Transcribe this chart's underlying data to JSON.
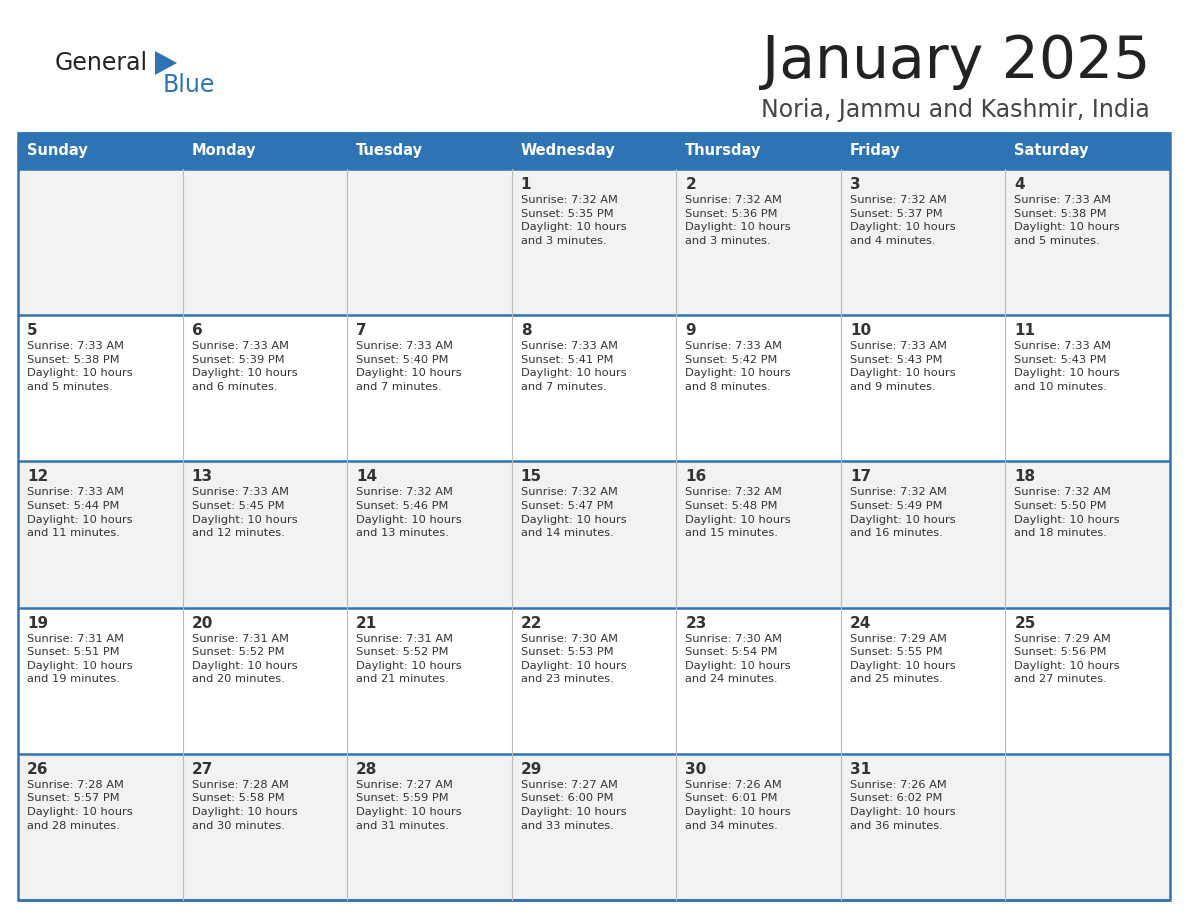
{
  "title": "January 2025",
  "subtitle": "Noria, Jammu and Kashmir, India",
  "days_of_week": [
    "Sunday",
    "Monday",
    "Tuesday",
    "Wednesday",
    "Thursday",
    "Friday",
    "Saturday"
  ],
  "header_bg": "#2E74B5",
  "header_text": "#FFFFFF",
  "row_bg_odd": "#F2F2F2",
  "row_bg_even": "#FFFFFF",
  "cell_text": "#333333",
  "border_color": "#2E74B5",
  "title_color": "#222222",
  "subtitle_color": "#444444",
  "logo_general_color": "#222222",
  "logo_blue_color": "#2E74B5",
  "logo_triangle_color": "#2E74B5",
  "calendar_data": [
    [
      {
        "day": "",
        "info": ""
      },
      {
        "day": "",
        "info": ""
      },
      {
        "day": "",
        "info": ""
      },
      {
        "day": "1",
        "info": "Sunrise: 7:32 AM\nSunset: 5:35 PM\nDaylight: 10 hours\nand 3 minutes."
      },
      {
        "day": "2",
        "info": "Sunrise: 7:32 AM\nSunset: 5:36 PM\nDaylight: 10 hours\nand 3 minutes."
      },
      {
        "day": "3",
        "info": "Sunrise: 7:32 AM\nSunset: 5:37 PM\nDaylight: 10 hours\nand 4 minutes."
      },
      {
        "day": "4",
        "info": "Sunrise: 7:33 AM\nSunset: 5:38 PM\nDaylight: 10 hours\nand 5 minutes."
      }
    ],
    [
      {
        "day": "5",
        "info": "Sunrise: 7:33 AM\nSunset: 5:38 PM\nDaylight: 10 hours\nand 5 minutes."
      },
      {
        "day": "6",
        "info": "Sunrise: 7:33 AM\nSunset: 5:39 PM\nDaylight: 10 hours\nand 6 minutes."
      },
      {
        "day": "7",
        "info": "Sunrise: 7:33 AM\nSunset: 5:40 PM\nDaylight: 10 hours\nand 7 minutes."
      },
      {
        "day": "8",
        "info": "Sunrise: 7:33 AM\nSunset: 5:41 PM\nDaylight: 10 hours\nand 7 minutes."
      },
      {
        "day": "9",
        "info": "Sunrise: 7:33 AM\nSunset: 5:42 PM\nDaylight: 10 hours\nand 8 minutes."
      },
      {
        "day": "10",
        "info": "Sunrise: 7:33 AM\nSunset: 5:43 PM\nDaylight: 10 hours\nand 9 minutes."
      },
      {
        "day": "11",
        "info": "Sunrise: 7:33 AM\nSunset: 5:43 PM\nDaylight: 10 hours\nand 10 minutes."
      }
    ],
    [
      {
        "day": "12",
        "info": "Sunrise: 7:33 AM\nSunset: 5:44 PM\nDaylight: 10 hours\nand 11 minutes."
      },
      {
        "day": "13",
        "info": "Sunrise: 7:33 AM\nSunset: 5:45 PM\nDaylight: 10 hours\nand 12 minutes."
      },
      {
        "day": "14",
        "info": "Sunrise: 7:32 AM\nSunset: 5:46 PM\nDaylight: 10 hours\nand 13 minutes."
      },
      {
        "day": "15",
        "info": "Sunrise: 7:32 AM\nSunset: 5:47 PM\nDaylight: 10 hours\nand 14 minutes."
      },
      {
        "day": "16",
        "info": "Sunrise: 7:32 AM\nSunset: 5:48 PM\nDaylight: 10 hours\nand 15 minutes."
      },
      {
        "day": "17",
        "info": "Sunrise: 7:32 AM\nSunset: 5:49 PM\nDaylight: 10 hours\nand 16 minutes."
      },
      {
        "day": "18",
        "info": "Sunrise: 7:32 AM\nSunset: 5:50 PM\nDaylight: 10 hours\nand 18 minutes."
      }
    ],
    [
      {
        "day": "19",
        "info": "Sunrise: 7:31 AM\nSunset: 5:51 PM\nDaylight: 10 hours\nand 19 minutes."
      },
      {
        "day": "20",
        "info": "Sunrise: 7:31 AM\nSunset: 5:52 PM\nDaylight: 10 hours\nand 20 minutes."
      },
      {
        "day": "21",
        "info": "Sunrise: 7:31 AM\nSunset: 5:52 PM\nDaylight: 10 hours\nand 21 minutes."
      },
      {
        "day": "22",
        "info": "Sunrise: 7:30 AM\nSunset: 5:53 PM\nDaylight: 10 hours\nand 23 minutes."
      },
      {
        "day": "23",
        "info": "Sunrise: 7:30 AM\nSunset: 5:54 PM\nDaylight: 10 hours\nand 24 minutes."
      },
      {
        "day": "24",
        "info": "Sunrise: 7:29 AM\nSunset: 5:55 PM\nDaylight: 10 hours\nand 25 minutes."
      },
      {
        "day": "25",
        "info": "Sunrise: 7:29 AM\nSunset: 5:56 PM\nDaylight: 10 hours\nand 27 minutes."
      }
    ],
    [
      {
        "day": "26",
        "info": "Sunrise: 7:28 AM\nSunset: 5:57 PM\nDaylight: 10 hours\nand 28 minutes."
      },
      {
        "day": "27",
        "info": "Sunrise: 7:28 AM\nSunset: 5:58 PM\nDaylight: 10 hours\nand 30 minutes."
      },
      {
        "day": "28",
        "info": "Sunrise: 7:27 AM\nSunset: 5:59 PM\nDaylight: 10 hours\nand 31 minutes."
      },
      {
        "day": "29",
        "info": "Sunrise: 7:27 AM\nSunset: 6:00 PM\nDaylight: 10 hours\nand 33 minutes."
      },
      {
        "day": "30",
        "info": "Sunrise: 7:26 AM\nSunset: 6:01 PM\nDaylight: 10 hours\nand 34 minutes."
      },
      {
        "day": "31",
        "info": "Sunrise: 7:26 AM\nSunset: 6:02 PM\nDaylight: 10 hours\nand 36 minutes."
      },
      {
        "day": "",
        "info": ""
      }
    ]
  ]
}
